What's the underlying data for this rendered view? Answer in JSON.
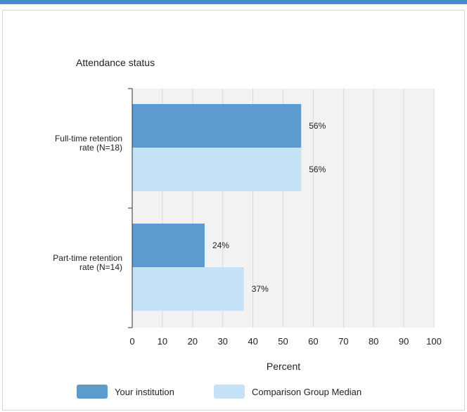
{
  "chart_data": {
    "type": "bar",
    "orientation": "horizontal",
    "title": "Attendance status",
    "xlabel": "Percent",
    "ylabel": "",
    "xlim": [
      0,
      100
    ],
    "ticks": [
      0,
      10,
      20,
      30,
      40,
      50,
      60,
      70,
      80,
      90,
      100
    ],
    "categories": [
      [
        "Full-time retention",
        "rate (N=18)"
      ],
      [
        "Part-time retention",
        "rate (N=14)"
      ]
    ],
    "series": [
      {
        "name": "Your institution",
        "values": [
          56,
          24
        ],
        "labels": [
          "56%",
          "24%"
        ],
        "color": "#5b9bd0"
      },
      {
        "name": "Comparison Group Median",
        "values": [
          56,
          37
        ],
        "labels": [
          "56%",
          "37%"
        ],
        "color": "#c5e2f6"
      }
    ],
    "grid": true,
    "legend_position": "bottom"
  }
}
